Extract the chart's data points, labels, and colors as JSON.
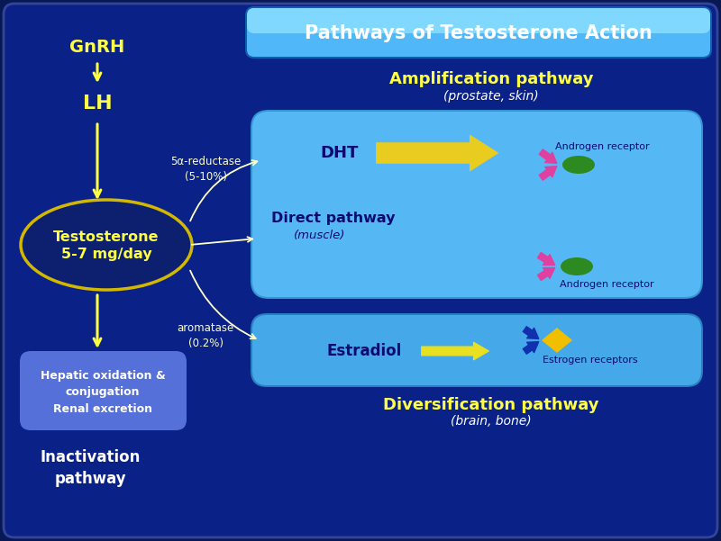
{
  "bg_color": "#071855",
  "title": "Pathways of Testosterone Action",
  "gnrh_text": "GnRH",
  "lh_text": "LH",
  "testosterone_color": "#ffff44",
  "ellipse_edge_color": "#d4b800",
  "ellipse_face_color": "#0d2070",
  "amplification_title": "Amplification pathway",
  "amplification_subtitle": "(prostate, skin)",
  "direct_pathway": "Direct pathway",
  "direct_subtitle": "(muscle)",
  "diversification_title": "Diversification pathway",
  "diversification_subtitle": "(brain, bone)",
  "inactivation_title": "Inactivation\npathway",
  "hepatic_text": "Hepatic oxidation &\nconjugation\nRenal excretion",
  "reductase_text": "5α-reductase\n(5-10%)",
  "aromatase_text": "aromatase\n(0.2%)",
  "dht_text": "DHT",
  "estradiol_text": "Estradiol",
  "androgen_receptor_text": "Androgen receptor",
  "estrogen_receptor_text": "Estrogen receptors",
  "upper_box_color": "#55b8f5",
  "lower_box_color": "#45a8e8",
  "hepatic_box_color": "#5570d8",
  "title_grad_top": "#80d0ff",
  "title_grad_bot": "#1080d0",
  "yellow_text": "#ffff44",
  "light_yellow": "#ffffcc",
  "white": "white",
  "dark_blue_text": "#0a0a70",
  "pink_receptor": "#e040a0",
  "green_ligand": "#2d8a20",
  "navy_receptor": "#1030b0",
  "yellow_diamond": "#f0c000"
}
